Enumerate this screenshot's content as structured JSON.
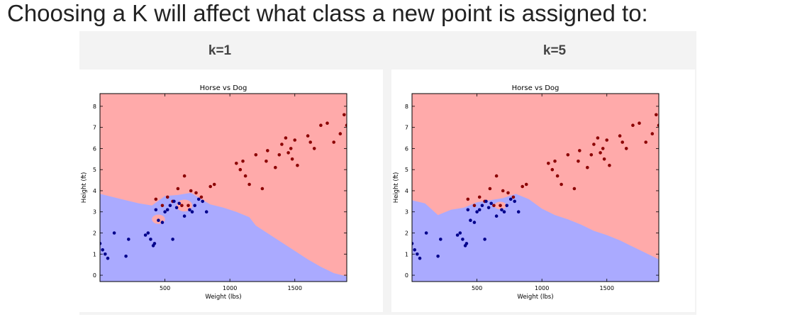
{
  "heading": "Choosing a K will affect what class a new point is assigned to:",
  "colors": {
    "horse_region": "#ffaaaa",
    "dog_region": "#aaaaff",
    "horse_point": "#8b0000",
    "dog_point": "#00008b"
  },
  "chart_data": [
    {
      "type": "scatter",
      "label": "k=1",
      "title": "Horse vs Dog",
      "xlabel": "Weight (lbs)",
      "ylabel": "Height (ft)",
      "xlim": [
        0,
        1900
      ],
      "ylim": [
        -0.3,
        8.6
      ],
      "xticks": [
        500,
        1000,
        1500
      ],
      "yticks": [
        0,
        1,
        2,
        3,
        4,
        5,
        6,
        7,
        8
      ],
      "grid": false,
      "background": "horse",
      "boundary": [
        [
          0,
          3.85
        ],
        [
          100,
          3.7
        ],
        [
          200,
          3.55
        ],
        [
          300,
          3.4
        ],
        [
          400,
          3.3
        ],
        [
          500,
          3.75
        ],
        [
          600,
          3.8
        ],
        [
          700,
          3.9
        ],
        [
          780,
          3.6
        ],
        [
          850,
          3.35
        ],
        [
          950,
          3.2
        ],
        [
          1050,
          3.0
        ],
        [
          1150,
          2.75
        ],
        [
          1200,
          2.35
        ],
        [
          1300,
          1.95
        ],
        [
          1400,
          1.55
        ],
        [
          1500,
          1.15
        ],
        [
          1600,
          0.75
        ],
        [
          1700,
          0.4
        ],
        [
          1800,
          0.1
        ],
        [
          1900,
          -0.05
        ]
      ],
      "horse_islands": [
        {
          "cx": 650,
          "cy": 3.3,
          "rx": 60,
          "ry": 0.28
        },
        {
          "cx": 450,
          "cy": 2.65,
          "rx": 50,
          "ry": 0.22
        }
      ],
      "series": [
        {
          "name": "Horse",
          "color": "#8b0000",
          "points": [
            [
              430,
              3.6
            ],
            [
              480,
              3.3
            ],
            [
              520,
              3.7
            ],
            [
              560,
              3.5
            ],
            [
              600,
              4.1
            ],
            [
              630,
              3.3
            ],
            [
              650,
              4.7
            ],
            [
              680,
              3.3
            ],
            [
              700,
              4.0
            ],
            [
              740,
              3.9
            ],
            [
              780,
              3.7
            ],
            [
              850,
              4.2
            ],
            [
              880,
              4.3
            ],
            [
              1050,
              5.3
            ],
            [
              1080,
              5.0
            ],
            [
              1100,
              5.4
            ],
            [
              1120,
              4.7
            ],
            [
              1150,
              4.3
            ],
            [
              1200,
              5.7
            ],
            [
              1250,
              4.1
            ],
            [
              1280,
              5.4
            ],
            [
              1290,
              5.9
            ],
            [
              1350,
              5.1
            ],
            [
              1380,
              5.7
            ],
            [
              1400,
              6.2
            ],
            [
              1430,
              6.5
            ],
            [
              1450,
              5.8
            ],
            [
              1470,
              6.0
            ],
            [
              1480,
              5.5
            ],
            [
              1500,
              6.4
            ],
            [
              1520,
              5.2
            ],
            [
              1600,
              6.6
            ],
            [
              1620,
              6.3
            ],
            [
              1650,
              6.0
            ],
            [
              1700,
              7.1
            ],
            [
              1750,
              7.2
            ],
            [
              1800,
              6.3
            ],
            [
              1850,
              6.7
            ],
            [
              1880,
              7.6
            ],
            [
              1900,
              7.1
            ]
          ]
        },
        {
          "name": "Dog",
          "color": "#00008b",
          "points": [
            [
              0,
              1.5
            ],
            [
              20,
              1.2
            ],
            [
              40,
              1.0
            ],
            [
              60,
              0.8
            ],
            [
              110,
              2.0
            ],
            [
              200,
              0.9
            ],
            [
              220,
              1.7
            ],
            [
              350,
              1.9
            ],
            [
              370,
              2.0
            ],
            [
              390,
              1.7
            ],
            [
              410,
              1.4
            ],
            [
              420,
              1.5
            ],
            [
              430,
              3.1
            ],
            [
              450,
              2.6
            ],
            [
              480,
              2.5
            ],
            [
              500,
              3.0
            ],
            [
              520,
              3.1
            ],
            [
              540,
              3.3
            ],
            [
              560,
              1.7
            ],
            [
              570,
              3.5
            ],
            [
              590,
              3.2
            ],
            [
              610,
              3.4
            ],
            [
              650,
              2.8
            ],
            [
              690,
              3.1
            ],
            [
              710,
              3.0
            ],
            [
              730,
              3.3
            ],
            [
              760,
              3.6
            ],
            [
              790,
              3.5
            ],
            [
              820,
              3.0
            ]
          ]
        }
      ]
    },
    {
      "type": "scatter",
      "label": "k=5",
      "title": "Horse vs Dog",
      "xlabel": "Weight (lbs)",
      "ylabel": "Height (ft)",
      "xlim": [
        0,
        1900
      ],
      "ylim": [
        -0.3,
        8.6
      ],
      "xticks": [
        500,
        1000,
        1500
      ],
      "yticks": [
        0,
        1,
        2,
        3,
        4,
        5,
        6,
        7,
        8
      ],
      "grid": false,
      "background": "horse",
      "boundary": [
        [
          0,
          3.55
        ],
        [
          100,
          3.4
        ],
        [
          200,
          2.85
        ],
        [
          300,
          3.1
        ],
        [
          400,
          3.2
        ],
        [
          500,
          3.45
        ],
        [
          600,
          3.55
        ],
        [
          700,
          3.65
        ],
        [
          800,
          3.85
        ],
        [
          900,
          3.6
        ],
        [
          1000,
          3.15
        ],
        [
          1100,
          2.85
        ],
        [
          1200,
          2.65
        ],
        [
          1300,
          2.4
        ],
        [
          1400,
          2.1
        ],
        [
          1500,
          1.9
        ],
        [
          1600,
          1.65
        ],
        [
          1700,
          1.35
        ],
        [
          1800,
          1.05
        ],
        [
          1900,
          0.75
        ]
      ],
      "horse_islands": [
        {
          "cx": 680,
          "cy": 3.3,
          "rx": 45,
          "ry": 0.18
        }
      ],
      "series": [
        {
          "name": "Horse",
          "color": "#8b0000",
          "points": [
            [
              430,
              3.6
            ],
            [
              480,
              3.3
            ],
            [
              520,
              3.7
            ],
            [
              560,
              3.5
            ],
            [
              600,
              4.1
            ],
            [
              630,
              3.3
            ],
            [
              650,
              4.7
            ],
            [
              680,
              3.3
            ],
            [
              700,
              4.0
            ],
            [
              740,
              3.9
            ],
            [
              780,
              3.7
            ],
            [
              850,
              4.2
            ],
            [
              880,
              4.3
            ],
            [
              1050,
              5.3
            ],
            [
              1080,
              5.0
            ],
            [
              1100,
              5.4
            ],
            [
              1120,
              4.7
            ],
            [
              1150,
              4.3
            ],
            [
              1200,
              5.7
            ],
            [
              1250,
              4.1
            ],
            [
              1280,
              5.4
            ],
            [
              1290,
              5.9
            ],
            [
              1350,
              5.1
            ],
            [
              1380,
              5.7
            ],
            [
              1400,
              6.2
            ],
            [
              1430,
              6.5
            ],
            [
              1450,
              5.8
            ],
            [
              1470,
              6.0
            ],
            [
              1480,
              5.5
            ],
            [
              1500,
              6.4
            ],
            [
              1520,
              5.2
            ],
            [
              1600,
              6.6
            ],
            [
              1620,
              6.3
            ],
            [
              1650,
              6.0
            ],
            [
              1700,
              7.1
            ],
            [
              1750,
              7.2
            ],
            [
              1800,
              6.3
            ],
            [
              1850,
              6.7
            ],
            [
              1880,
              7.6
            ],
            [
              1900,
              7.1
            ]
          ]
        },
        {
          "name": "Dog",
          "color": "#00008b",
          "points": [
            [
              0,
              1.5
            ],
            [
              20,
              1.2
            ],
            [
              40,
              1.0
            ],
            [
              60,
              0.8
            ],
            [
              110,
              2.0
            ],
            [
              200,
              0.9
            ],
            [
              220,
              1.7
            ],
            [
              350,
              1.9
            ],
            [
              370,
              2.0
            ],
            [
              390,
              1.7
            ],
            [
              410,
              1.4
            ],
            [
              420,
              1.5
            ],
            [
              430,
              3.1
            ],
            [
              450,
              2.6
            ],
            [
              480,
              2.5
            ],
            [
              500,
              3.0
            ],
            [
              520,
              3.1
            ],
            [
              540,
              3.3
            ],
            [
              560,
              1.7
            ],
            [
              570,
              3.5
            ],
            [
              590,
              3.2
            ],
            [
              610,
              3.4
            ],
            [
              650,
              2.8
            ],
            [
              690,
              3.1
            ],
            [
              710,
              3.0
            ],
            [
              730,
              3.3
            ],
            [
              760,
              3.6
            ],
            [
              790,
              3.5
            ],
            [
              820,
              3.0
            ]
          ]
        }
      ]
    }
  ]
}
